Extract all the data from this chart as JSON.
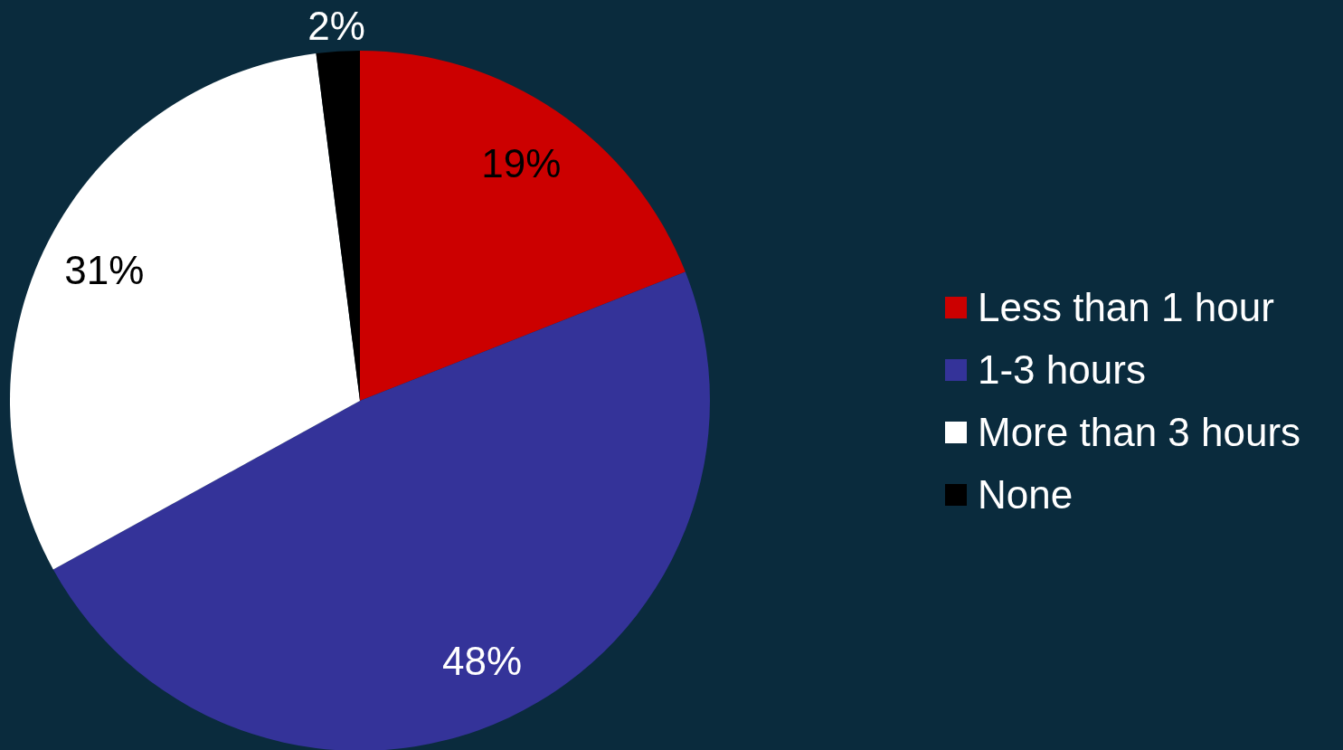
{
  "chart_data": {
    "type": "pie",
    "categories": [
      "Less than 1 hour",
      "1-3 hours",
      "More than 3 hours",
      "None"
    ],
    "values": [
      19,
      48,
      31,
      2
    ],
    "colors": [
      "#cc0000",
      "#343399",
      "#ffffff",
      "#000000"
    ],
    "value_labels": [
      "19%",
      "48%",
      "31%",
      "2%"
    ],
    "legend": "right"
  }
}
